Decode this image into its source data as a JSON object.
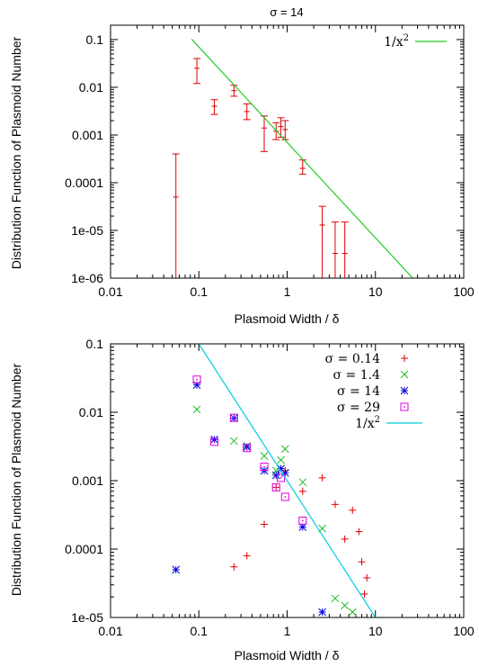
{
  "chart_data": [
    {
      "type": "scatter",
      "title": "σ = 14",
      "xlabel": "Plasmoid Width / δ",
      "ylabel": "Distribution Function of Plasmoid Number",
      "xscale": "log",
      "yscale": "log",
      "xlim": [
        0.01,
        100
      ],
      "ylim": [
        1e-06,
        0.2
      ],
      "xticks": [
        "0.01",
        "0.1",
        "1",
        "10",
        "100"
      ],
      "yticks": [
        "1e-06",
        "1e-05",
        "0.0001",
        "0.001",
        "0.01",
        "0.1"
      ],
      "legend_position": "top-right",
      "series": [
        {
          "name": "",
          "style": "points-with-errorbars",
          "color": "#dd0000",
          "points": [
            {
              "x": 0.055,
              "y": 5e-05,
              "ylow": 1e-06,
              "yhigh": 0.0004
            },
            {
              "x": 0.095,
              "y": 0.025,
              "ylow": 0.012,
              "yhigh": 0.04
            },
            {
              "x": 0.15,
              "y": 0.004,
              "ylow": 0.0027,
              "yhigh": 0.0055
            },
            {
              "x": 0.25,
              "y": 0.0085,
              "ylow": 0.0065,
              "yhigh": 0.011
            },
            {
              "x": 0.35,
              "y": 0.0031,
              "ylow": 0.0021,
              "yhigh": 0.0045
            },
            {
              "x": 0.55,
              "y": 0.0014,
              "ylow": 0.00045,
              "yhigh": 0.0025
            },
            {
              "x": 0.75,
              "y": 0.0012,
              "ylow": 0.0008,
              "yhigh": 0.0018
            },
            {
              "x": 0.85,
              "y": 0.0015,
              "ylow": 0.0009,
              "yhigh": 0.0023
            },
            {
              "x": 0.95,
              "y": 0.0013,
              "ylow": 0.0008,
              "yhigh": 0.002
            },
            {
              "x": 1.5,
              "y": 0.0002,
              "ylow": 0.00015,
              "yhigh": 0.0003
            },
            {
              "x": 2.5,
              "y": 1.3e-05,
              "ylow": 1e-06,
              "yhigh": 3.2e-05
            },
            {
              "x": 3.5,
              "y": 3.3e-06,
              "ylow": 1e-06,
              "yhigh": 1.5e-05
            },
            {
              "x": 4.5,
              "y": 3.3e-06,
              "ylow": 1e-06,
              "yhigh": 1.5e-05
            }
          ]
        },
        {
          "name": "1/x²",
          "style": "line",
          "color": "#22cc22",
          "function": "1/x^2",
          "coefficient": 0.0007,
          "xrange": [
            0.083,
            100
          ]
        }
      ],
      "legend_entries": [
        {
          "label": "1/x",
          "sup": "2",
          "color": "#22cc22",
          "symbol": "line"
        }
      ]
    },
    {
      "type": "scatter",
      "title": "",
      "xlabel": "Plasmoid Width / δ",
      "ylabel": "Distribution Function of Plasmoid Number",
      "xscale": "log",
      "yscale": "log",
      "xlim": [
        0.01,
        100
      ],
      "ylim": [
        1e-05,
        0.1
      ],
      "xticks": [
        "0.01",
        "0.1",
        "1",
        "10",
        "100"
      ],
      "yticks": [
        "1e-05",
        "0.0001",
        "0.001",
        "0.01",
        "0.1"
      ],
      "legend_position": "top-right",
      "series": [
        {
          "name": "σ = 0.14",
          "marker": "plus",
          "color": "#dd0000",
          "points": [
            [
              0.25,
              5.5e-05
            ],
            [
              0.35,
              8e-05
            ],
            [
              0.55,
              0.00023
            ],
            [
              0.75,
              0.0008
            ],
            [
              0.95,
              0.0014
            ],
            [
              1.5,
              0.0007
            ],
            [
              2.5,
              0.0011
            ],
            [
              3.5,
              0.00045
            ],
            [
              4.5,
              0.00014
            ],
            [
              5.5,
              0.00037
            ],
            [
              6.5,
              0.00018
            ],
            [
              7,
              6.5e-05
            ],
            [
              8,
              3.8e-05
            ],
            [
              7.5,
              2.2e-05
            ]
          ]
        },
        {
          "name": "σ = 1.4",
          "marker": "cross",
          "color": "#22bb22",
          "points": [
            [
              0.095,
              0.011
            ],
            [
              0.25,
              0.0038
            ],
            [
              0.35,
              0.0032
            ],
            [
              0.55,
              0.0023
            ],
            [
              0.75,
              0.0014
            ],
            [
              0.85,
              0.002
            ],
            [
              0.95,
              0.0029
            ],
            [
              1.5,
              0.00095
            ],
            [
              2.5,
              0.0002
            ],
            [
              3.5,
              1.9e-05
            ],
            [
              4.5,
              1.5e-05
            ],
            [
              5.5,
              1.2e-05
            ]
          ]
        },
        {
          "name": "σ = 14",
          "marker": "star",
          "color": "#0000dd",
          "points": [
            [
              0.055,
              5e-05
            ],
            [
              0.095,
              0.025
            ],
            [
              0.15,
              0.004
            ],
            [
              0.25,
              0.0082
            ],
            [
              0.35,
              0.0031
            ],
            [
              0.55,
              0.0014
            ],
            [
              0.75,
              0.0012
            ],
            [
              0.85,
              0.0015
            ],
            [
              0.95,
              0.0013
            ],
            [
              1.5,
              0.00021
            ],
            [
              2.5,
              1.2e-05
            ]
          ]
        },
        {
          "name": "σ = 29",
          "marker": "box-dot",
          "color": "#dd00dd",
          "points": [
            [
              0.095,
              0.03
            ],
            [
              0.15,
              0.0037
            ],
            [
              0.25,
              0.0083
            ],
            [
              0.35,
              0.003
            ],
            [
              0.55,
              0.0016
            ],
            [
              0.75,
              0.0008
            ],
            [
              0.85,
              0.0011
            ],
            [
              0.95,
              0.00058
            ],
            [
              1.5,
              0.00026
            ]
          ]
        },
        {
          "name": "1/x²",
          "style": "line",
          "color": "#00ccdd",
          "function": "1/x^2",
          "coefficient": 0.001,
          "xrange": [
            0.1,
            10
          ]
        }
      ],
      "legend_entries": [
        {
          "label": "σ = 0.14",
          "color": "#dd0000",
          "symbol": "plus"
        },
        {
          "label": "σ = 1.4",
          "color": "#22bb22",
          "symbol": "cross"
        },
        {
          "label": "σ = 14",
          "color": "#0000dd",
          "symbol": "star"
        },
        {
          "label": "σ = 29",
          "color": "#dd00dd",
          "symbol": "box-dot"
        },
        {
          "label": "1/x",
          "sup": "2",
          "color": "#00ccdd",
          "symbol": "line"
        }
      ]
    }
  ]
}
